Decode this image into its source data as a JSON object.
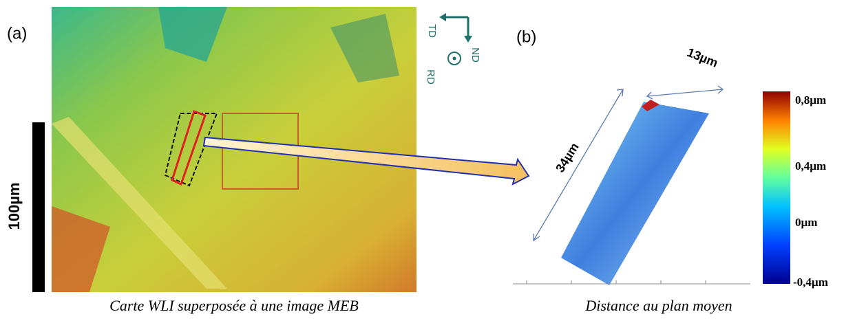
{
  "panel_a": {
    "label": "(a)",
    "scale_bar": "100µm",
    "caption": "Carte WLI superposée à une image MEB",
    "orientation": {
      "td": "TD",
      "nd": "ND",
      "rd": "RD"
    }
  },
  "panel_b": {
    "label": "(b)",
    "width_label": "13µm",
    "length_label": "34µm",
    "caption": "Distance au plan moyen",
    "colorbar_labels": [
      "0,8µm",
      "0,4µm",
      "0µm",
      "-0,4µm"
    ]
  }
}
